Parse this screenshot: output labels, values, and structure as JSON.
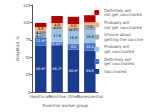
{
  "chart_data": {
    "type": "bar",
    "stacked": true,
    "xlabel": "Essential worker group",
    "ylabel": "Weighted, %",
    "categories": [
      "Healthcare",
      "Frontline",
      "Other",
      "Nonessential"
    ],
    "series": [
      {
        "name": "Vaccinated",
        "color": "#1a3c8f",
        "values": [
          66.9,
          66.2,
          60.9,
          59.8
        ],
        "value_labels": [
          "66.9*",
          "66.2*",
          "60.9*",
          "59.8"
        ]
      },
      {
        "name": "Definitely will\nget vaccinated",
        "color": "#4472c4",
        "values": [
          11.9,
          6.01,
          8.0,
          10.5
        ],
        "value_labels": [
          "11.9*",
          "6.01*",
          "8.0",
          "10.5"
        ]
      },
      {
        "name": "Probably will\nget vaccinated",
        "color": "#9dc3e6",
        "values": [
          4.27,
          17.8,
          18.8,
          18.8
        ],
        "value_labels": [
          "4.27*",
          "17.8",
          "18.8",
          "18.8"
        ]
      },
      {
        "name": "Unsure about\ngetting the vaccine",
        "color": "#a6a6a6",
        "values": [
          4.27,
          4.27,
          4.27,
          7.5
        ],
        "value_labels": [
          "4.27*",
          "4.27",
          "4.27",
          "7.5"
        ]
      },
      {
        "name": "Probably will\nnot get vaccinated",
        "color": "#f4b183",
        "values": [
          5.8,
          4.8,
          5.8,
          3.5
        ],
        "value_labels": [
          "5.8",
          "4.8",
          "5.8",
          null
        ]
      },
      {
        "name": "Definitely will\nnot get vaccinated",
        "color": "#c00000",
        "values": [
          6.17,
          10.3,
          10.3,
          10.3
        ],
        "value_labels": [
          "6.17",
          "10.3",
          "10.3*",
          "10.3"
        ]
      }
    ],
    "ylim": [
      0,
      125
    ],
    "yticks": [
      0,
      25,
      50,
      75,
      100,
      125
    ],
    "grid": false,
    "legend": "right",
    "data_labels": true
  }
}
